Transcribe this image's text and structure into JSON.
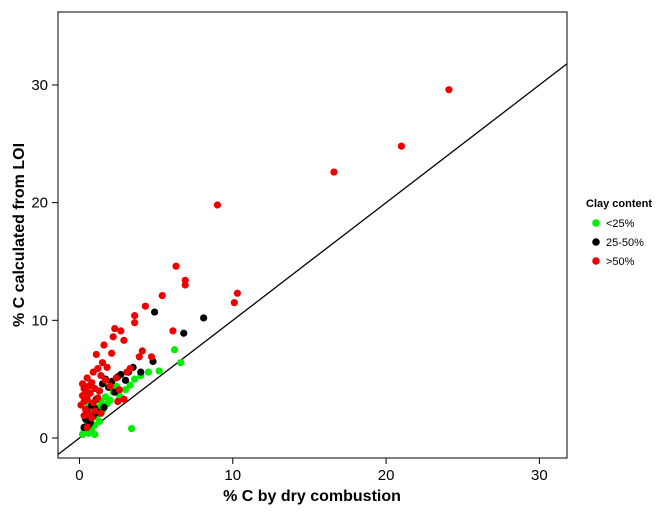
{
  "chart_data": {
    "type": "scatter",
    "xlabel": "% C by dry combustion",
    "ylabel": "% C calculated from LOI",
    "xlim": [
      -1.4,
      31.8
    ],
    "ylim": [
      -1.7,
      36.2
    ],
    "x_ticks": [
      0,
      10,
      20,
      30
    ],
    "y_ticks": [
      0,
      10,
      20,
      30
    ],
    "x_tick_labels": [
      "0",
      "10",
      "20",
      "30"
    ],
    "y_tick_labels": [
      "0",
      "10",
      "20",
      "30"
    ],
    "grid": false,
    "legend": {
      "title": "Clay content",
      "position": "right"
    },
    "reference_line": {
      "type": "1:1 line",
      "color": "#000000",
      "from": [
        -1.4,
        -1.4
      ],
      "to": [
        31.8,
        31.8
      ]
    },
    "series": [
      {
        "name": "<25%",
        "color": "#00ee00",
        "points": [
          [
            0.2,
            0.3
          ],
          [
            0.3,
            0.6
          ],
          [
            0.4,
            0.9
          ],
          [
            0.5,
            1.2
          ],
          [
            0.6,
            0.4
          ],
          [
            0.7,
            1.5
          ],
          [
            0.8,
            0.8
          ],
          [
            1.0,
            0.3
          ],
          [
            1.0,
            1.1
          ],
          [
            0.9,
            2.1
          ],
          [
            1.1,
            1.8
          ],
          [
            1.2,
            2.6
          ],
          [
            1.4,
            3.1
          ],
          [
            1.5,
            2.3
          ],
          [
            1.7,
            3.5
          ],
          [
            1.8,
            2.9
          ],
          [
            2.0,
            3.2
          ],
          [
            2.2,
            3.9
          ],
          [
            2.4,
            4.4
          ],
          [
            2.6,
            3.6
          ],
          [
            3.0,
            4.1
          ],
          [
            3.3,
            4.5
          ],
          [
            3.6,
            5.0
          ],
          [
            4.0,
            5.3
          ],
          [
            4.5,
            5.6
          ],
          [
            5.2,
            5.7
          ],
          [
            6.2,
            7.5
          ],
          [
            6.6,
            6.4
          ],
          [
            3.4,
            0.8
          ],
          [
            0.5,
            2.0
          ],
          [
            0.6,
            2.8
          ],
          [
            1.3,
            1.4
          ]
        ]
      },
      {
        "name": "25-50%",
        "color": "#000000",
        "points": [
          [
            0.3,
            0.9
          ],
          [
            0.4,
            1.6
          ],
          [
            0.5,
            2.4
          ],
          [
            0.6,
            1.1
          ],
          [
            0.8,
            2.8
          ],
          [
            0.9,
            1.9
          ],
          [
            1.0,
            2.5
          ],
          [
            1.1,
            3.3
          ],
          [
            1.2,
            2.2
          ],
          [
            1.3,
            4.0
          ],
          [
            1.5,
            4.6
          ],
          [
            1.7,
            5.0
          ],
          [
            1.9,
            4.3
          ],
          [
            2.1,
            4.8
          ],
          [
            2.3,
            3.9
          ],
          [
            2.5,
            5.2
          ],
          [
            2.7,
            5.4
          ],
          [
            3.0,
            4.9
          ],
          [
            3.2,
            5.6
          ],
          [
            3.5,
            6.0
          ],
          [
            4.0,
            5.6
          ],
          [
            4.8,
            6.5
          ],
          [
            4.9,
            10.7
          ],
          [
            6.8,
            8.9
          ],
          [
            8.1,
            10.2
          ],
          [
            1.6,
            2.6
          ],
          [
            0.7,
            1.3
          ]
        ]
      },
      {
        "name": ">50%",
        "color": "#ee0000",
        "points": [
          [
            0.1,
            2.8
          ],
          [
            0.2,
            3.6
          ],
          [
            0.2,
            4.6
          ],
          [
            0.3,
            3.1
          ],
          [
            0.3,
            4.2
          ],
          [
            0.4,
            2.4
          ],
          [
            0.4,
            3.9
          ],
          [
            0.5,
            5.1
          ],
          [
            0.5,
            3.3
          ],
          [
            0.6,
            4.4
          ],
          [
            0.6,
            2.0
          ],
          [
            0.7,
            3.8
          ],
          [
            0.8,
            4.7
          ],
          [
            0.8,
            1.7
          ],
          [
            0.9,
            3.0
          ],
          [
            1.0,
            4.2
          ],
          [
            1.0,
            2.3
          ],
          [
            1.1,
            7.1
          ],
          [
            1.2,
            5.9
          ],
          [
            1.3,
            4.0
          ],
          [
            1.4,
            5.3
          ],
          [
            1.5,
            6.4
          ],
          [
            1.6,
            7.9
          ],
          [
            1.7,
            4.9
          ],
          [
            1.8,
            6.0
          ],
          [
            2.0,
            4.4
          ],
          [
            2.1,
            7.2
          ],
          [
            2.2,
            8.6
          ],
          [
            2.3,
            9.3
          ],
          [
            2.4,
            5.1
          ],
          [
            2.5,
            3.1
          ],
          [
            2.6,
            4.1
          ],
          [
            2.7,
            9.1
          ],
          [
            2.9,
            8.3
          ],
          [
            3.1,
            5.6
          ],
          [
            3.3,
            5.9
          ],
          [
            3.6,
            9.8
          ],
          [
            3.6,
            10.4
          ],
          [
            3.9,
            6.9
          ],
          [
            4.1,
            7.4
          ],
          [
            4.3,
            11.2
          ],
          [
            4.7,
            6.9
          ],
          [
            5.4,
            12.1
          ],
          [
            6.1,
            9.1
          ],
          [
            6.3,
            14.6
          ],
          [
            6.9,
            13.0
          ],
          [
            6.9,
            13.4
          ],
          [
            9.0,
            19.8
          ],
          [
            10.1,
            11.5
          ],
          [
            10.3,
            12.3
          ],
          [
            16.6,
            22.6
          ],
          [
            21.0,
            24.8
          ],
          [
            24.1,
            29.6
          ],
          [
            0.5,
            0.9
          ],
          [
            1.4,
            2.1
          ],
          [
            2.9,
            3.3
          ],
          [
            0.9,
            5.6
          ],
          [
            1.2,
            3.4
          ],
          [
            0.3,
            1.9
          ]
        ]
      }
    ]
  }
}
